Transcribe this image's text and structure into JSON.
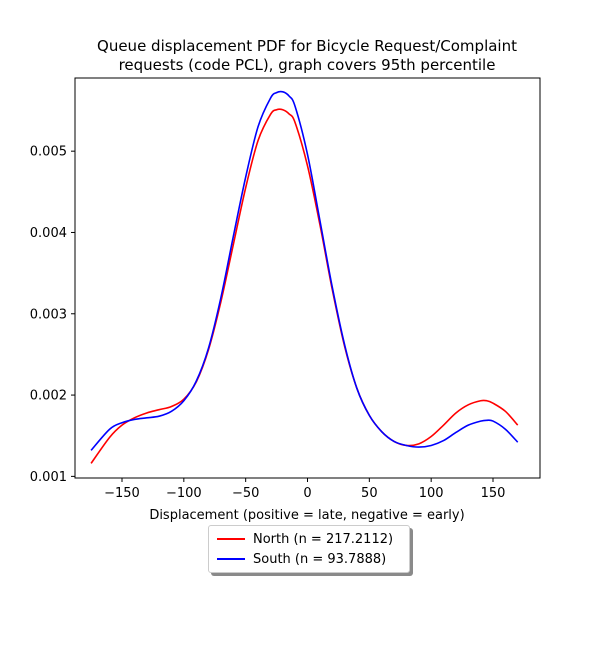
{
  "chart_data": {
    "type": "line",
    "title_line1": "Queue displacement PDF for Bicycle Request/Complaint",
    "title_line2": "requests (code PCL), graph covers 95th percentile",
    "xlabel": "Displacement (positive = late, negative = early)",
    "ylabel": "",
    "xlim": [
      -188,
      188
    ],
    "ylim": [
      0.00098,
      0.0059
    ],
    "xticks": [
      -150,
      -100,
      -50,
      0,
      50,
      100,
      150
    ],
    "xtick_labels": [
      "−150",
      "−100",
      "−50",
      "0",
      "50",
      "100",
      "150"
    ],
    "yticks": [
      0.001,
      0.002,
      0.003,
      0.004,
      0.005
    ],
    "ytick_labels": [
      "0.001",
      "0.002",
      "0.003",
      "0.004",
      "0.005"
    ],
    "grid": false,
    "legend_position": "below",
    "series": [
      {
        "name": "North (n = 217.2112)",
        "color": "#ff0000",
        "x": [
          -175,
          -160,
          -150,
          -140,
          -130,
          -120,
          -110,
          -100,
          -90,
          -80,
          -70,
          -60,
          -50,
          -40,
          -30,
          -25,
          -20,
          -15,
          -10,
          0,
          10,
          20,
          30,
          40,
          50,
          60,
          70,
          80,
          90,
          100,
          110,
          120,
          130,
          140,
          145,
          150,
          160,
          170
        ],
        "y": [
          0.00116,
          0.00148,
          0.00163,
          0.00172,
          0.00178,
          0.00182,
          0.00186,
          0.00195,
          0.00216,
          0.00256,
          0.00315,
          0.00385,
          0.00455,
          0.00513,
          0.00545,
          0.00551,
          0.00551,
          0.00546,
          0.00535,
          0.00482,
          0.0041,
          0.0033,
          0.0026,
          0.00208,
          0.00175,
          0.00155,
          0.00143,
          0.00138,
          0.0014,
          0.00149,
          0.00163,
          0.00178,
          0.00188,
          0.00193,
          0.00193,
          0.0019,
          0.0018,
          0.00163
        ]
      },
      {
        "name": "South (n = 93.7888)",
        "color": "#0000ff",
        "x": [
          -175,
          -160,
          -150,
          -140,
          -130,
          -120,
          -110,
          -100,
          -90,
          -80,
          -70,
          -60,
          -50,
          -40,
          -30,
          -25,
          -20,
          -15,
          -10,
          0,
          10,
          20,
          30,
          40,
          50,
          60,
          70,
          80,
          90,
          100,
          110,
          120,
          130,
          140,
          145,
          150,
          160,
          170
        ],
        "y": [
          0.00132,
          0.00158,
          0.00166,
          0.0017,
          0.00172,
          0.00174,
          0.0018,
          0.00193,
          0.00217,
          0.00258,
          0.0032,
          0.00395,
          0.00468,
          0.0053,
          0.00565,
          0.00572,
          0.00573,
          0.00568,
          0.00555,
          0.00496,
          0.00415,
          0.00333,
          0.00262,
          0.00208,
          0.00175,
          0.00155,
          0.00143,
          0.00138,
          0.00136,
          0.00138,
          0.00144,
          0.00154,
          0.00163,
          0.00168,
          0.00169,
          0.00168,
          0.00158,
          0.00142
        ]
      }
    ]
  }
}
